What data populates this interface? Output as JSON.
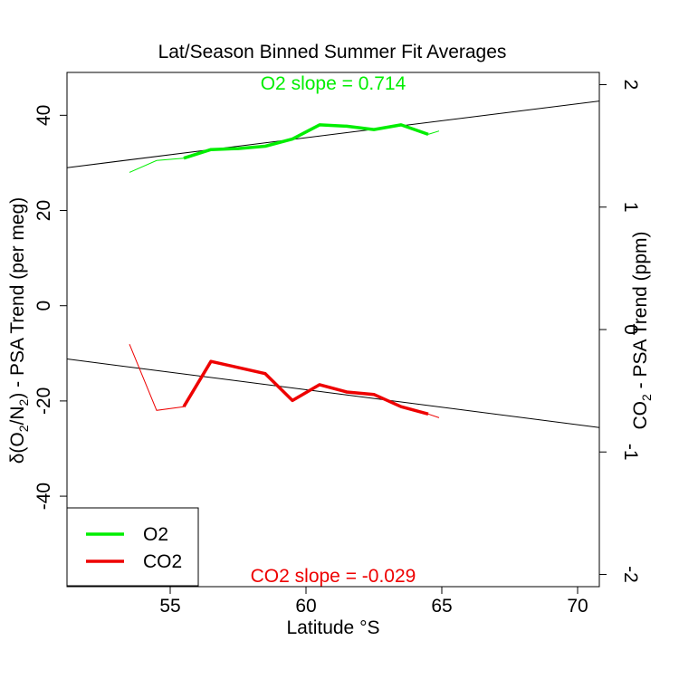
{
  "chart_data": {
    "type": "line",
    "title": "Lat/Season Binned Summer Fit Averages",
    "xlabel": "Latitude °S",
    "ylabel_left": {
      "prefix": "δ(O",
      "sub1": "2",
      "mid": "/N",
      "sub2": "2",
      "suffix": ") - PSA Trend (per meg)"
    },
    "ylabel_right": {
      "prefix": "CO",
      "sub": "2",
      "suffix": " - PSA Trend (ppm)"
    },
    "xlim": [
      51.2,
      70.8
    ],
    "ylim_left": [
      -59,
      49
    ],
    "ylim_right": [
      -2.1,
      2.1
    ],
    "x_ticks": [
      55,
      60,
      65,
      70
    ],
    "y_ticks_left": [
      -40,
      -20,
      0,
      20,
      40
    ],
    "y_ticks_right": [
      -2,
      -1,
      0,
      1,
      2
    ],
    "annotations": {
      "o2_slope": "O2 slope = 0.714",
      "co2_slope": "CO2 slope = -0.029"
    },
    "colors": {
      "o2": "#00ee00",
      "co2": "#ee0000",
      "fit": "#000000"
    },
    "legend": {
      "position": "bottom-left",
      "entries": [
        "O2",
        "CO2"
      ]
    },
    "series": [
      {
        "name": "O2",
        "axis": "left",
        "thin": {
          "x": [
            53.5,
            54.5,
            55.5
          ],
          "y": [
            28,
            30.5,
            31
          ]
        },
        "thick": {
          "x": [
            55.5,
            56.5,
            57.5,
            58.5,
            59.5,
            60.5,
            61.5,
            62.5,
            63.5,
            64.5
          ],
          "y": [
            31,
            32.8,
            33,
            33.5,
            35,
            38,
            37.7,
            37,
            38,
            36
          ]
        },
        "thin_end": {
          "x": [
            64.5,
            64.9
          ],
          "y": [
            36,
            36.7
          ]
        },
        "fit": {
          "x": [
            51.2,
            70.8
          ],
          "y": [
            29,
            43
          ]
        }
      },
      {
        "name": "CO2",
        "axis": "right",
        "thin": {
          "x": [
            53.5,
            54.5,
            55.5
          ],
          "y": [
            -0.12,
            -0.66,
            -0.63
          ]
        },
        "thick": {
          "x": [
            55.5,
            56.5,
            57.5,
            58.5,
            59.5,
            60.5,
            61.5,
            62.5,
            63.5,
            64.5
          ],
          "y": [
            -0.63,
            -0.26,
            -0.31,
            -0.36,
            -0.58,
            -0.45,
            -0.51,
            -0.53,
            -0.63,
            -0.69
          ]
        },
        "thin_end": {
          "x": [
            64.5,
            64.9
          ],
          "y": [
            -0.69,
            -0.72
          ]
        },
        "fit": {
          "x": [
            51.2,
            70.8
          ],
          "y": [
            -0.24,
            -0.8
          ]
        }
      }
    ]
  }
}
